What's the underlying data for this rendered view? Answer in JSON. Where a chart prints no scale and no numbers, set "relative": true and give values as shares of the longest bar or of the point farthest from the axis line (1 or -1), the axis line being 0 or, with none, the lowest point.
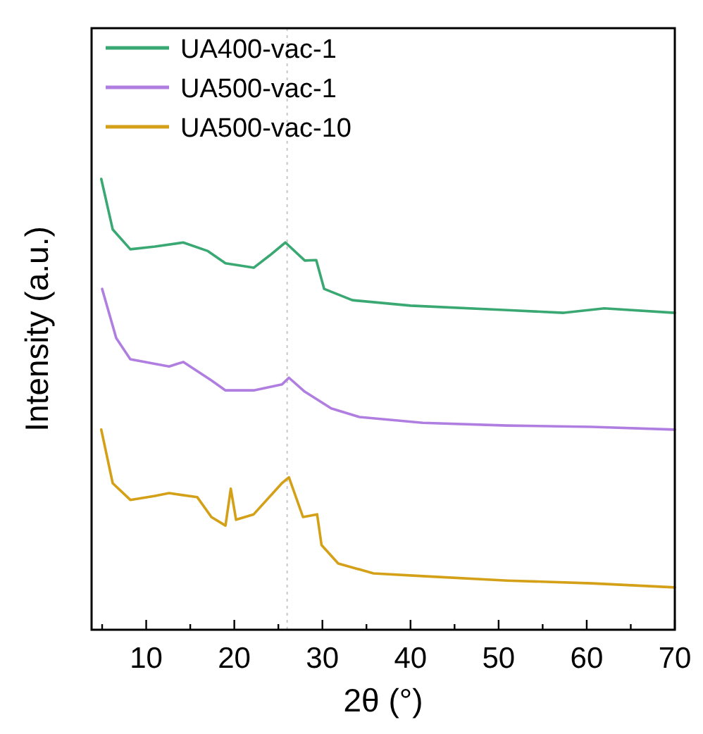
{
  "chart_data": {
    "type": "line",
    "relative": true,
    "xlabel": "2θ (°)",
    "ylabel": "Intensity (a.u.)",
    "xlim": [
      3.8,
      70
    ],
    "xticks": [
      {
        "value": 5,
        "label": null
      },
      10,
      {
        "value": 15,
        "label": null
      },
      20,
      {
        "value": 25,
        "label": null
      },
      30,
      {
        "value": 35,
        "label": null
      },
      40,
      {
        "value": 45,
        "label": null
      },
      50,
      {
        "value": 55,
        "label": null
      },
      60,
      {
        "value": 65,
        "label": null
      },
      70
    ],
    "tick_labels": "x",
    "legend": "top left",
    "grid": false,
    "line_style": "solid",
    "ref_lines": [
      {
        "axis": "x",
        "value": 26,
        "line_style": "dotted",
        "color": "#c8c8c8"
      }
    ],
    "series": [
      {
        "name": "UA400-vac-1",
        "color": "#3aa872",
        "x": [
          4.9,
          6.2,
          8.2,
          11,
          14.2,
          17,
          19,
          22.2,
          24,
          25.8,
          28,
          29.3,
          30.2,
          33.4,
          40,
          51,
          57.4,
          62,
          70
        ],
        "values": [
          1.0,
          0.888,
          0.844,
          0.85,
          0.859,
          0.84,
          0.813,
          0.803,
          0.83,
          0.859,
          0.819,
          0.82,
          0.756,
          0.731,
          0.719,
          0.709,
          0.703,
          0.713,
          0.703
        ]
      },
      {
        "name": "UA500-vac-1",
        "color": "#b07ee0",
        "x": [
          5,
          6.6,
          8.2,
          12.6,
          14.2,
          17.4,
          19,
          22.2,
          25.4,
          26.2,
          28,
          31,
          34.2,
          41.4,
          51,
          60.6,
          70
        ],
        "values": [
          0.756,
          0.647,
          0.6,
          0.584,
          0.594,
          0.553,
          0.531,
          0.531,
          0.544,
          0.559,
          0.528,
          0.491,
          0.472,
          0.459,
          0.453,
          0.45,
          0.444
        ]
      },
      {
        "name": "UA500-vac-10",
        "color": "#d4a017",
        "x": [
          4.9,
          6.2,
          8.2,
          11,
          12.6,
          15.8,
          17.4,
          19,
          19.6,
          20.2,
          22.2,
          25.4,
          26.2,
          27.8,
          29.4,
          29.9,
          31.8,
          35.8,
          41.4,
          51,
          60.6,
          70
        ],
        "values": [
          0.444,
          0.325,
          0.288,
          0.297,
          0.303,
          0.294,
          0.25,
          0.231,
          0.313,
          0.244,
          0.256,
          0.325,
          0.338,
          0.25,
          0.256,
          0.188,
          0.147,
          0.125,
          0.119,
          0.109,
          0.103,
          0.094
        ]
      }
    ]
  }
}
